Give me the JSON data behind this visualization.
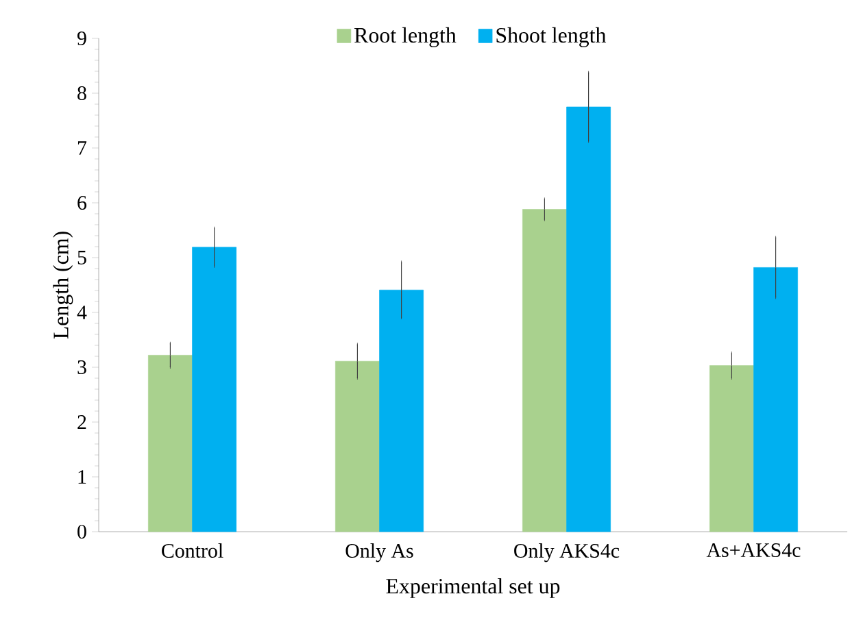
{
  "chart_data": {
    "type": "bar",
    "xlabel": "Experimental set up",
    "ylabel": "Length (cm)",
    "categories": [
      "Control",
      "Only As",
      "Only AKS4c",
      "As+AKS4c"
    ],
    "series": [
      {
        "name": "Root length",
        "color": "#a9d18e",
        "values": [
          3.22,
          3.11,
          5.88,
          3.03
        ],
        "errors": [
          0.22,
          0.31,
          0.19,
          0.23
        ]
      },
      {
        "name": "Shoot length",
        "color": "#00b0f0",
        "values": [
          5.19,
          4.41,
          7.75,
          4.82
        ],
        "errors": [
          0.35,
          0.51,
          0.63,
          0.55
        ]
      }
    ],
    "ylim": [
      0,
      9
    ],
    "yticks": [
      0,
      1,
      2,
      3,
      4,
      5,
      6,
      7,
      8,
      9
    ],
    "legend": "top"
  }
}
